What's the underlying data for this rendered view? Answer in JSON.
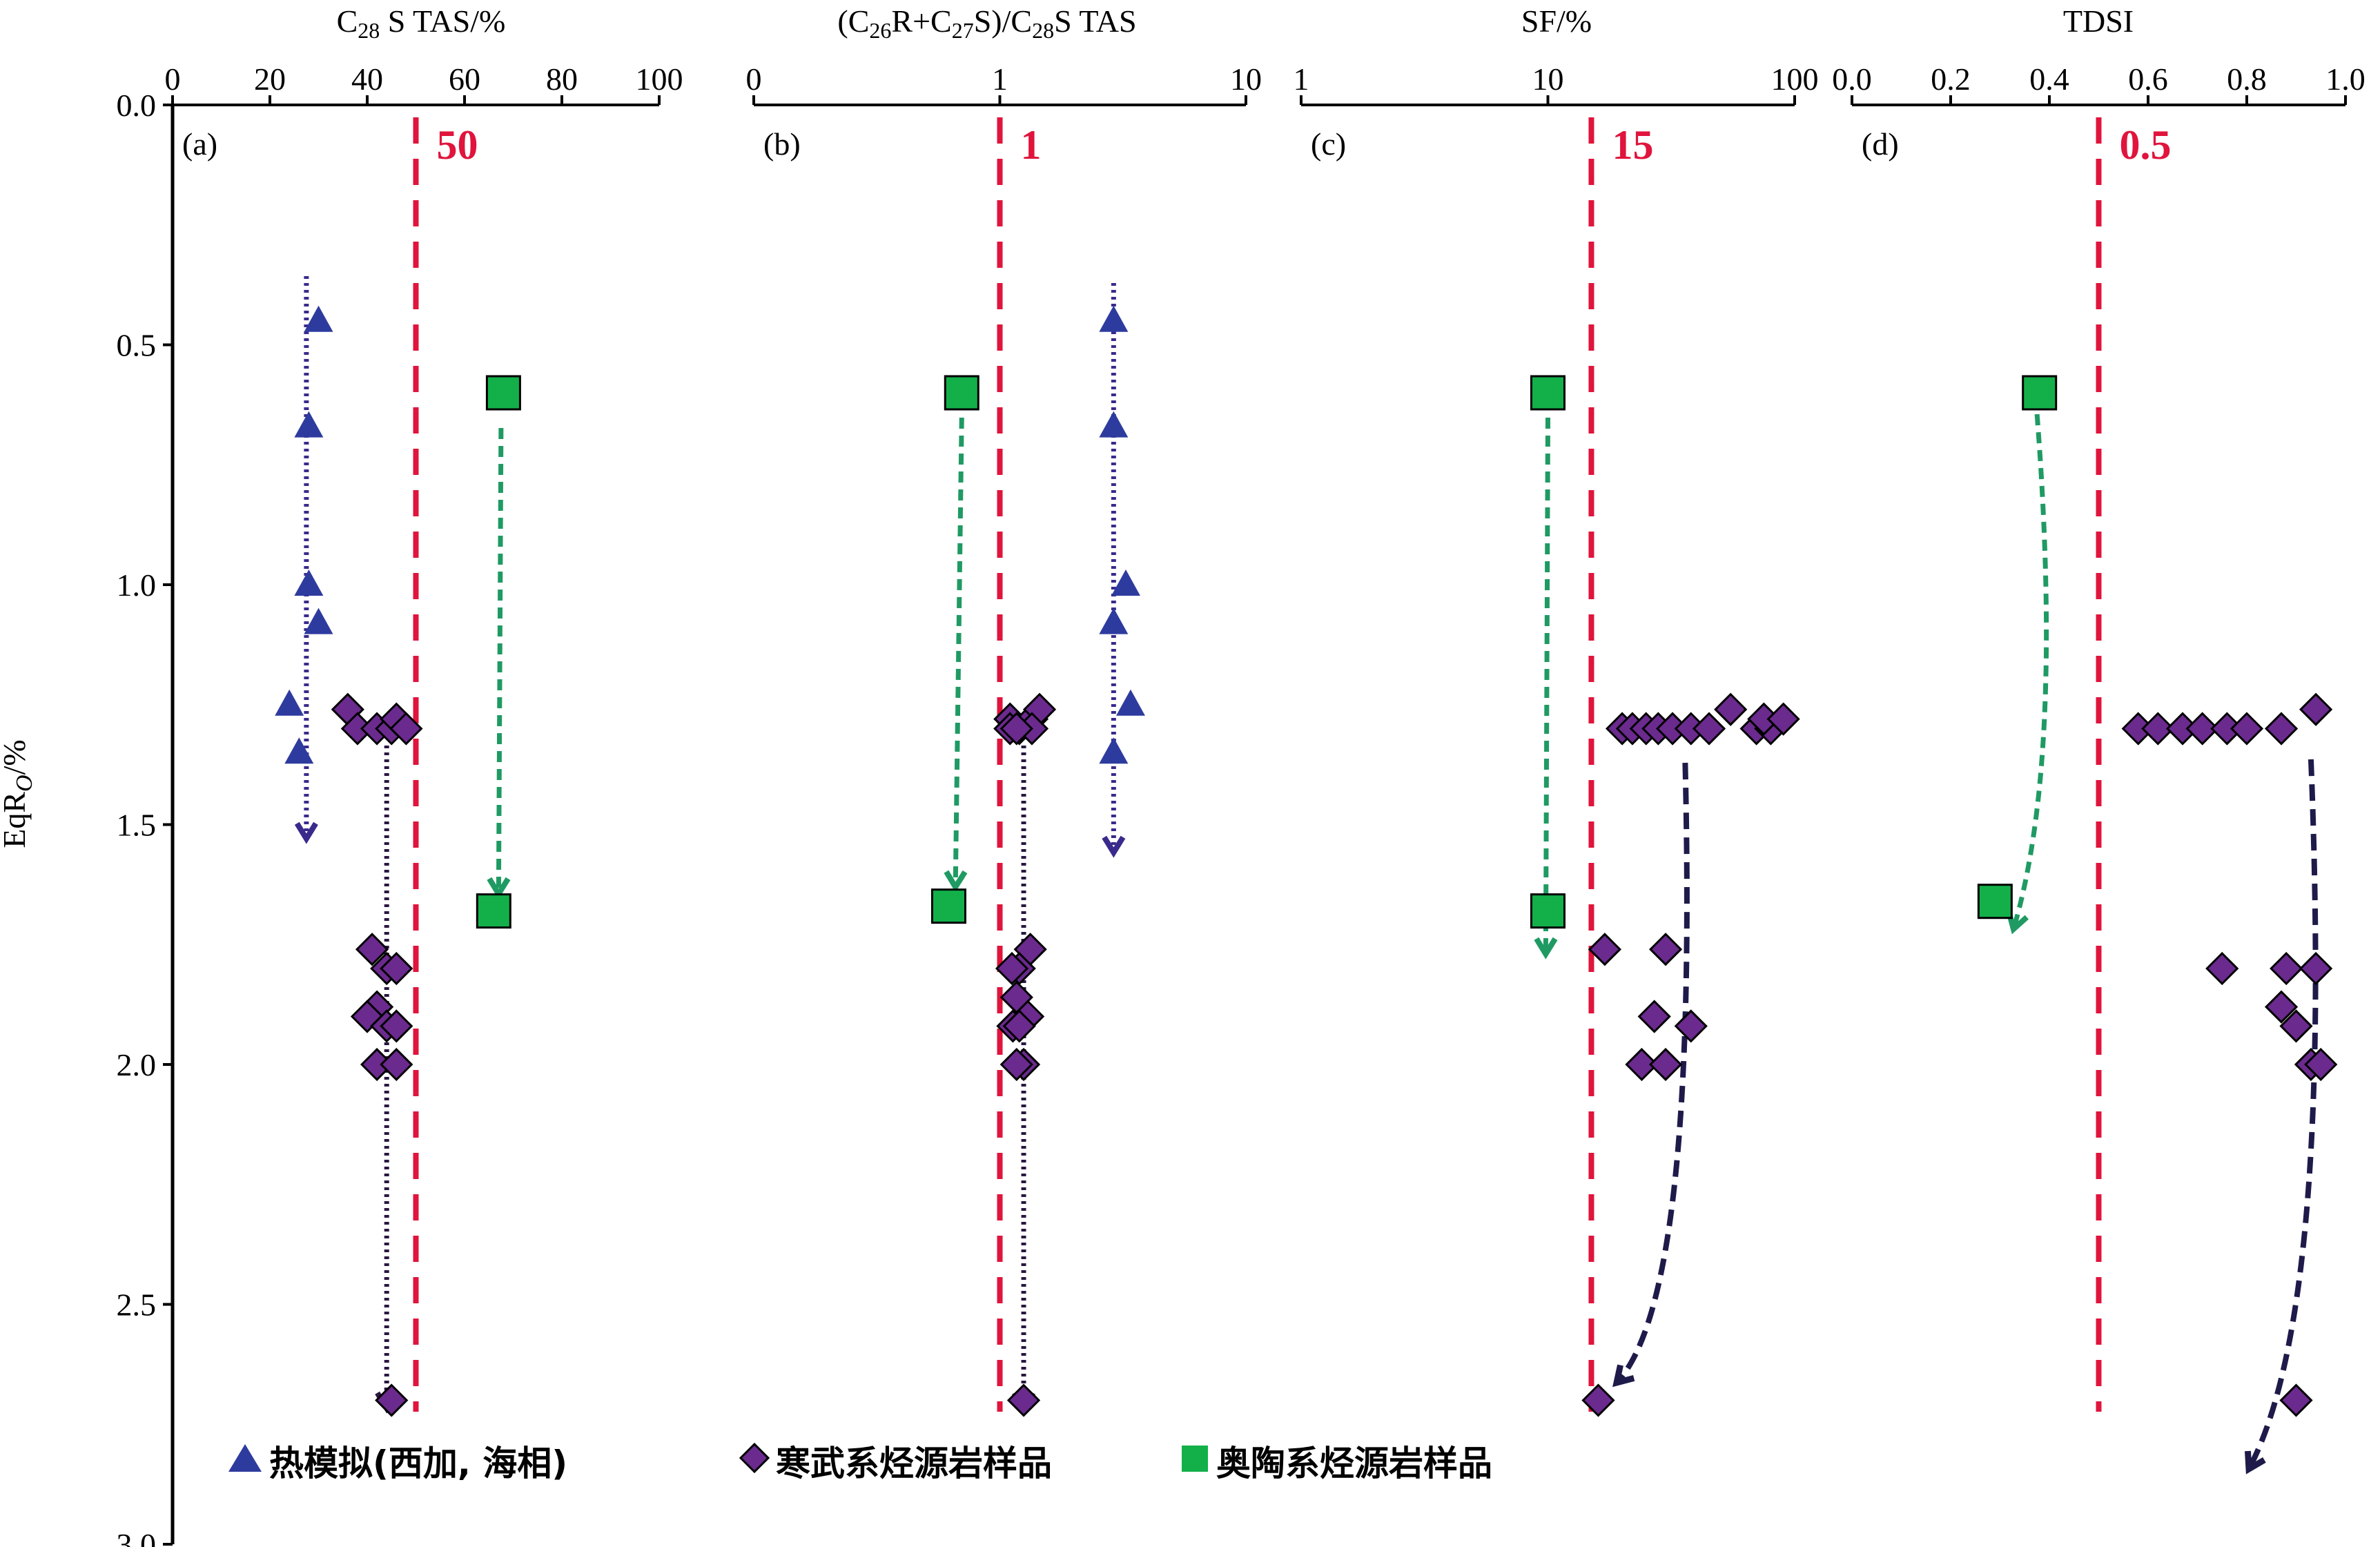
{
  "colors": {
    "triangle": "#2e3b9e",
    "diamond": "#6b2a8e",
    "square": "#13b04a",
    "threshold": "#e0143c",
    "arrow_blue": "#3a2a8c",
    "arrow_navy": "#1e1b4a",
    "arrow_green": "#1f9a63",
    "arrow_diamond_vertical": "#2a1740"
  },
  "y_axis": {
    "label": "EqR",
    "label_sub": "O",
    "label_suffix": "/%",
    "ticks": [
      "0.0",
      "0.5",
      "1.0",
      "1.5",
      "2.0",
      "2.5",
      "3.0"
    ]
  },
  "legend": {
    "triangle_label": "热模拟(西加, 海相)",
    "diamond_label": "寒武系烃源岩样品",
    "square_label": "奥陶系烃源岩样品"
  },
  "chart_data": [
    {
      "type": "scatter",
      "panel_label": "(a)",
      "title_parts": [
        "C",
        "28",
        " S TAS/%"
      ],
      "xscale": "linear",
      "xlim": [
        0,
        100
      ],
      "xticks": [
        "0",
        "20",
        "40",
        "60",
        "80",
        "100"
      ],
      "ylim": [
        0,
        3.0
      ],
      "y_reversed": true,
      "threshold": {
        "x": 50,
        "label": "50"
      },
      "series": [
        {
          "marker": "triangle",
          "points": [
            [
              30,
              0.45
            ],
            [
              28,
              0.67
            ],
            [
              28,
              1.0
            ],
            [
              30,
              1.08
            ],
            [
              24,
              1.25
            ],
            [
              26,
              1.35
            ]
          ]
        },
        {
          "marker": "diamond",
          "points": [
            [
              36,
              1.26
            ],
            [
              38,
              1.3
            ],
            [
              42,
              1.3
            ],
            [
              45,
              1.3
            ],
            [
              46,
              1.28
            ],
            [
              48,
              1.3
            ],
            [
              41,
              1.76
            ],
            [
              44,
              1.8
            ],
            [
              46,
              1.8
            ],
            [
              42,
              1.88
            ],
            [
              40,
              1.9
            ],
            [
              44,
              1.92
            ],
            [
              46,
              1.92
            ],
            [
              42,
              2.0
            ],
            [
              46,
              2.0
            ],
            [
              45,
              2.7
            ]
          ]
        },
        {
          "marker": "square",
          "points": [
            [
              68,
              0.6
            ],
            [
              66,
              1.68
            ]
          ]
        }
      ]
    },
    {
      "type": "scatter",
      "panel_label": "(b)",
      "title_parts": [
        "(C",
        "26",
        "R+C",
        "27",
        "S)/C",
        "28",
        "S TAS"
      ],
      "xscale": "log",
      "xlim": [
        0.1,
        10
      ],
      "xticks": [
        "0",
        "1",
        "10"
      ],
      "ylim": [
        0,
        3.0
      ],
      "y_reversed": true,
      "threshold": {
        "x": 1,
        "label": "1"
      },
      "series": [
        {
          "marker": "triangle",
          "points": [
            [
              2.9,
              0.45
            ],
            [
              2.9,
              0.67
            ],
            [
              3.25,
              1.0
            ],
            [
              2.9,
              1.08
            ],
            [
              3.4,
              1.25
            ],
            [
              2.9,
              1.35
            ]
          ]
        },
        {
          "marker": "diamond",
          "points": [
            [
              1.1,
              1.28
            ],
            [
              1.1,
              1.3
            ],
            [
              1.2,
              1.3
            ],
            [
              1.35,
              1.28
            ],
            [
              1.45,
              1.26
            ],
            [
              1.35,
              1.3
            ],
            [
              1.17,
              1.3
            ],
            [
              1.33,
              1.76
            ],
            [
              1.2,
              1.8
            ],
            [
              1.12,
              1.8
            ],
            [
              1.17,
              1.86
            ],
            [
              1.3,
              1.9
            ],
            [
              1.13,
              1.92
            ],
            [
              1.2,
              1.92
            ],
            [
              1.25,
              2.0
            ],
            [
              1.17,
              2.0
            ],
            [
              1.25,
              2.7
            ]
          ]
        },
        {
          "marker": "square",
          "points": [
            [
              0.7,
              0.6
            ],
            [
              0.62,
              1.67
            ]
          ]
        }
      ]
    },
    {
      "type": "scatter",
      "panel_label": "(c)",
      "title_parts": [
        "SF/%"
      ],
      "xscale": "log",
      "xlim": [
        1,
        100
      ],
      "xticks": [
        "1",
        "10",
        "100"
      ],
      "ylim": [
        0,
        3.0
      ],
      "y_reversed": true,
      "threshold": {
        "x": 15,
        "label": "15"
      },
      "series": [
        {
          "marker": "diamond",
          "points": [
            [
              20,
              1.3
            ],
            [
              22,
              1.3
            ],
            [
              25,
              1.3
            ],
            [
              28,
              1.3
            ],
            [
              32,
              1.3
            ],
            [
              38,
              1.3
            ],
            [
              45,
              1.3
            ],
            [
              55,
              1.26
            ],
            [
              70,
              1.3
            ],
            [
              80,
              1.3
            ],
            [
              75,
              1.28
            ],
            [
              90,
              1.28
            ],
            [
              17,
              1.76
            ],
            [
              30,
              1.76
            ],
            [
              27,
              1.9
            ],
            [
              38,
              1.92
            ],
            [
              24,
              2.0
            ],
            [
              30,
              2.0
            ],
            [
              16,
              2.7
            ]
          ]
        },
        {
          "marker": "square",
          "points": [
            [
              10,
              0.6
            ],
            [
              10,
              1.68
            ]
          ]
        }
      ]
    },
    {
      "type": "scatter",
      "panel_label": "(d)",
      "title_parts": [
        "TDSI"
      ],
      "xscale": "linear",
      "xlim": [
        0,
        1.0
      ],
      "xticks": [
        "0.0",
        "0.2",
        "0.4",
        "0.6",
        "0.8",
        "1.0"
      ],
      "ylim": [
        0,
        3.0
      ],
      "y_reversed": true,
      "threshold": {
        "x": 0.5,
        "label": "0.5"
      },
      "series": [
        {
          "marker": "diamond",
          "points": [
            [
              0.58,
              1.3
            ],
            [
              0.62,
              1.3
            ],
            [
              0.67,
              1.3
            ],
            [
              0.71,
              1.3
            ],
            [
              0.76,
              1.3
            ],
            [
              0.8,
              1.3
            ],
            [
              0.87,
              1.3
            ],
            [
              0.94,
              1.26
            ],
            [
              0.75,
              1.8
            ],
            [
              0.88,
              1.8
            ],
            [
              0.94,
              1.8
            ],
            [
              0.87,
              1.88
            ],
            [
              0.9,
              1.92
            ],
            [
              0.93,
              2.0
            ],
            [
              0.95,
              2.0
            ],
            [
              0.9,
              2.7
            ]
          ]
        },
        {
          "marker": "square",
          "points": [
            [
              0.38,
              0.6
            ],
            [
              0.29,
              1.66
            ]
          ]
        }
      ]
    }
  ]
}
